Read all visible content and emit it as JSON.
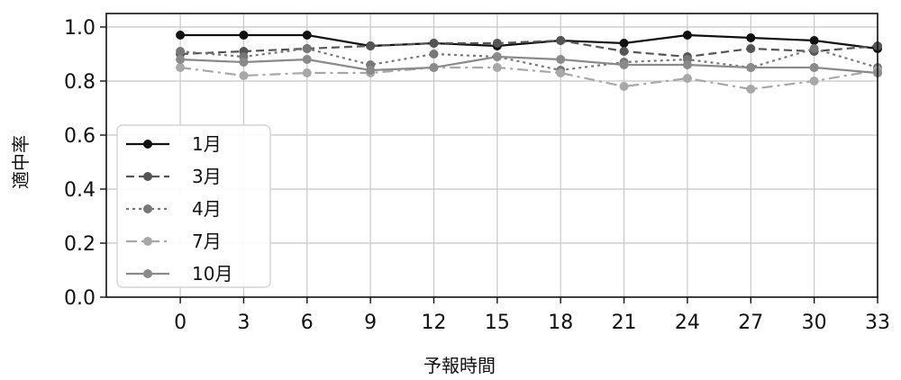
{
  "chart_data": {
    "type": "line",
    "title": "",
    "xlabel": "予報時間",
    "ylabel": "適中率",
    "x": [
      0,
      3,
      6,
      9,
      12,
      15,
      18,
      21,
      24,
      27,
      30,
      33
    ],
    "xlim": [
      -3.5,
      33
    ],
    "ylim": [
      0.0,
      1.05
    ],
    "yticks": [
      0.0,
      0.2,
      0.4,
      0.6,
      0.8,
      1.0
    ],
    "ytick_labels": [
      "0.0",
      "0.2",
      "0.4",
      "0.6",
      "0.8",
      "1.0"
    ],
    "xticks": [
      0,
      3,
      6,
      9,
      12,
      15,
      18,
      21,
      24,
      27,
      30,
      33
    ],
    "xtick_labels": [
      "0",
      "3",
      "6",
      "9",
      "12",
      "15",
      "18",
      "21",
      "24",
      "27",
      "30",
      "33"
    ],
    "grid": true,
    "legend_position": "lower-left",
    "series": [
      {
        "name": "1月",
        "color": "#111111",
        "dash": "solid",
        "values": [
          0.97,
          0.97,
          0.97,
          0.93,
          0.94,
          0.93,
          0.95,
          0.94,
          0.97,
          0.96,
          0.95,
          0.92
        ]
      },
      {
        "name": "3月",
        "color": "#555555",
        "dash": "dashed",
        "values": [
          0.9,
          0.91,
          0.92,
          0.93,
          0.94,
          0.94,
          0.95,
          0.91,
          0.89,
          0.92,
          0.91,
          0.93
        ]
      },
      {
        "name": "4月",
        "color": "#777777",
        "dash": "dotted",
        "values": [
          0.91,
          0.89,
          0.92,
          0.86,
          0.9,
          0.89,
          0.84,
          0.87,
          0.88,
          0.85,
          0.92,
          0.85
        ]
      },
      {
        "name": "7月",
        "color": "#a8a8a8",
        "dash": "dashdot",
        "values": [
          0.85,
          0.82,
          0.83,
          0.83,
          0.85,
          0.85,
          0.83,
          0.78,
          0.81,
          0.77,
          0.8,
          0.84
        ]
      },
      {
        "name": "10月",
        "color": "#8a8a8a",
        "dash": "solid",
        "values": [
          0.88,
          0.87,
          0.88,
          0.84,
          0.85,
          0.89,
          0.88,
          0.86,
          0.86,
          0.85,
          0.85,
          0.83
        ]
      }
    ]
  }
}
